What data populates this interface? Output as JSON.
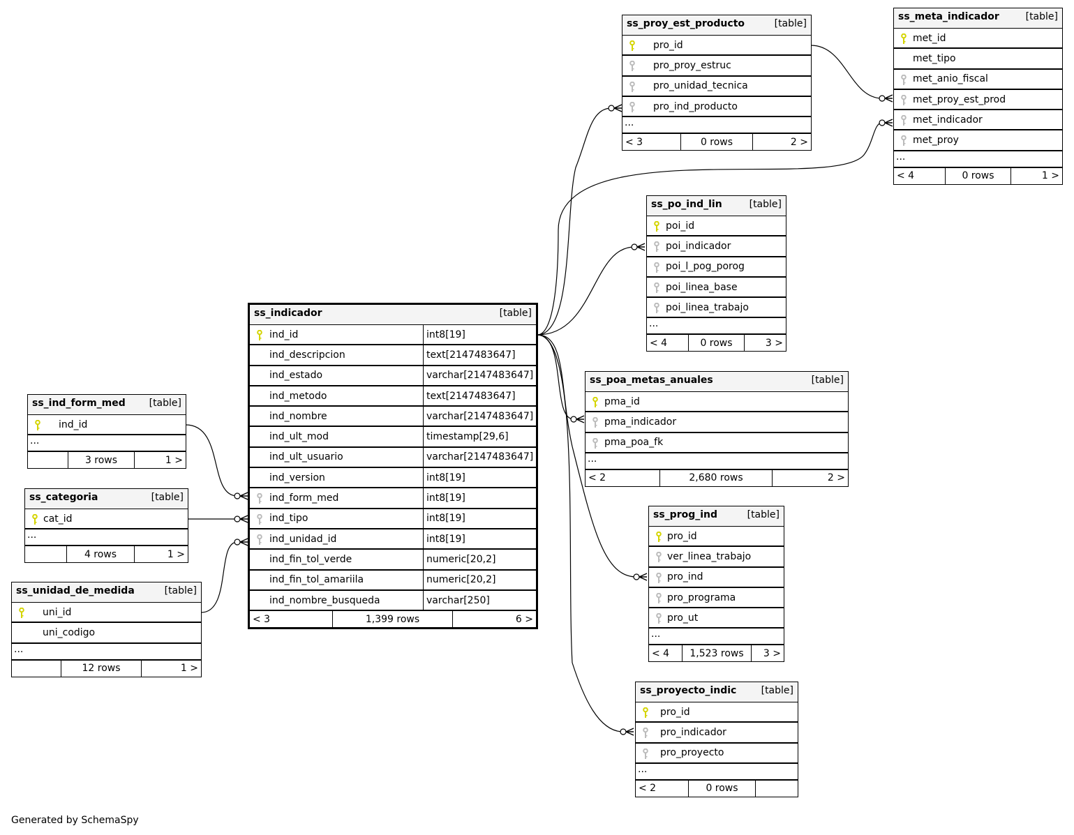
{
  "footer_text": "Generated by SchemaSpy",
  "colors": {
    "primary_key": "#d4d400",
    "foreign_key": "#bbbbbb",
    "header_bg": "#f4f4f4"
  },
  "tables": [
    {
      "name": "ss_proy_est_producto",
      "kind": "[table]",
      "columns": [
        {
          "name": "pro_id",
          "key": "pk"
        },
        {
          "name": "pro_proy_estruc",
          "key": "fk"
        },
        {
          "name": "pro_unidad_tecnica",
          "key": "fk"
        },
        {
          "name": "pro_ind_producto",
          "key": "fk"
        }
      ],
      "more": "...",
      "footer": {
        "left": "< 3",
        "rows": "0 rows",
        "right": "2 >"
      }
    },
    {
      "name": "ss_meta_indicador",
      "kind": "[table]",
      "columns": [
        {
          "name": "met_id",
          "key": "pk"
        },
        {
          "name": "met_tipo",
          "key": ""
        },
        {
          "name": "met_anio_fiscal",
          "key": "fk"
        },
        {
          "name": "met_proy_est_prod",
          "key": "fk"
        },
        {
          "name": "met_indicador",
          "key": "fk"
        },
        {
          "name": "met_proy",
          "key": "fk"
        }
      ],
      "more": "...",
      "footer": {
        "left": "< 4",
        "rows": "0 rows",
        "right": "1 >"
      }
    },
    {
      "name": "ss_po_ind_lin",
      "kind": "[table]",
      "columns": [
        {
          "name": "poi_id",
          "key": "pk"
        },
        {
          "name": "poi_indicador",
          "key": "fk"
        },
        {
          "name": "poi_l_pog_porog",
          "key": "fk"
        },
        {
          "name": "poi_linea_base",
          "key": "fk"
        },
        {
          "name": "poi_linea_trabajo",
          "key": "fk"
        }
      ],
      "more": "...",
      "footer": {
        "left": "< 4",
        "rows": "0 rows",
        "right": "3 >"
      }
    },
    {
      "name": "ss_poa_metas_anuales",
      "kind": "[table]",
      "columns": [
        {
          "name": "pma_id",
          "key": "pk"
        },
        {
          "name": "pma_indicador",
          "key": "fk"
        },
        {
          "name": "pma_poa_fk",
          "key": "fk"
        }
      ],
      "more": "...",
      "footer": {
        "left": "< 2",
        "rows": "2,680 rows",
        "right": "2 >"
      }
    },
    {
      "name": "ss_prog_ind",
      "kind": "[table]",
      "columns": [
        {
          "name": "pro_id",
          "key": "pk"
        },
        {
          "name": "ver_linea_trabajo",
          "key": "fk"
        },
        {
          "name": "pro_ind",
          "key": "fk"
        },
        {
          "name": "pro_programa",
          "key": "fk"
        },
        {
          "name": "pro_ut",
          "key": "fk"
        }
      ],
      "more": "...",
      "footer": {
        "left": "< 4",
        "rows": "1,523 rows",
        "right": "3 >"
      }
    },
    {
      "name": "ss_proyecto_indic",
      "kind": "[table]",
      "columns": [
        {
          "name": "pro_id",
          "key": "pk"
        },
        {
          "name": "pro_indicador",
          "key": "fk"
        },
        {
          "name": "pro_proyecto",
          "key": "fk"
        }
      ],
      "more": "...",
      "footer": {
        "left": "< 2",
        "rows": "0 rows",
        "right": ""
      }
    },
    {
      "name": "ss_indicador",
      "kind": "[table]",
      "columns": [
        {
          "name": "ind_id",
          "type": "int8[19]",
          "key": "pk"
        },
        {
          "name": "ind_descripcion",
          "type": "text[2147483647]",
          "key": ""
        },
        {
          "name": "ind_estado",
          "type": "varchar[2147483647]",
          "key": ""
        },
        {
          "name": "ind_metodo",
          "type": "text[2147483647]",
          "key": ""
        },
        {
          "name": "ind_nombre",
          "type": "varchar[2147483647]",
          "key": ""
        },
        {
          "name": "ind_ult_mod",
          "type": "timestamp[29,6]",
          "key": ""
        },
        {
          "name": "ind_ult_usuario",
          "type": "varchar[2147483647]",
          "key": ""
        },
        {
          "name": "ind_version",
          "type": "int8[19]",
          "key": ""
        },
        {
          "name": "ind_form_med",
          "type": "int8[19]",
          "key": "fk"
        },
        {
          "name": "ind_tipo",
          "type": "int8[19]",
          "key": "fk"
        },
        {
          "name": "ind_unidad_id",
          "type": "int8[19]",
          "key": "fk"
        },
        {
          "name": "ind_fin_tol_verde",
          "type": "numeric[20,2]",
          "key": ""
        },
        {
          "name": "ind_fin_tol_amariila",
          "type": "numeric[20,2]",
          "key": ""
        },
        {
          "name": "ind_nombre_busqueda",
          "type": "varchar[250]",
          "key": ""
        }
      ],
      "footer": {
        "left": "< 3",
        "rows": "1,399 rows",
        "right": "6 >"
      }
    },
    {
      "name": "ss_ind_form_med",
      "kind": "[table]",
      "columns": [
        {
          "name": "ind_id",
          "key": "pk"
        }
      ],
      "more": "...",
      "footer": {
        "left": "",
        "rows": "3 rows",
        "right": "1 >"
      }
    },
    {
      "name": "ss_categoria",
      "kind": "[table]",
      "columns": [
        {
          "name": "cat_id",
          "key": "pk"
        }
      ],
      "more": "...",
      "footer": {
        "left": "",
        "rows": "4 rows",
        "right": "1 >"
      }
    },
    {
      "name": "ss_unidad_de_medida",
      "kind": "[table]",
      "columns": [
        {
          "name": "uni_id",
          "key": "pk"
        },
        {
          "name": "uni_codigo",
          "key": ""
        }
      ],
      "more": "...",
      "footer": {
        "left": "",
        "rows": "12 rows",
        "right": "1 >"
      }
    }
  ]
}
